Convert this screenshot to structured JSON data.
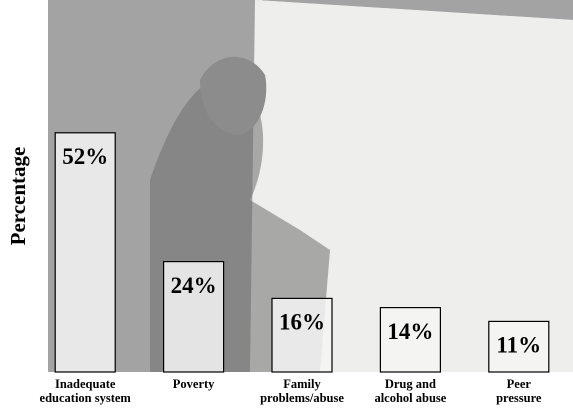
{
  "chart_data": {
    "type": "bar",
    "y_label": "Percentage",
    "categories": [
      [
        "Inadequate",
        "education system"
      ],
      [
        "Poverty"
      ],
      [
        "Family",
        "problems/abuse"
      ],
      [
        "Drug and",
        "alcohol abuse"
      ],
      [
        "Peer",
        "pressure"
      ]
    ],
    "values": [
      52,
      24,
      16,
      14,
      11
    ],
    "value_labels": [
      "52%",
      "24%",
      "16%",
      "14%",
      "11%"
    ],
    "color": "#f4f4f4",
    "ylim": [
      0,
      55
    ]
  }
}
